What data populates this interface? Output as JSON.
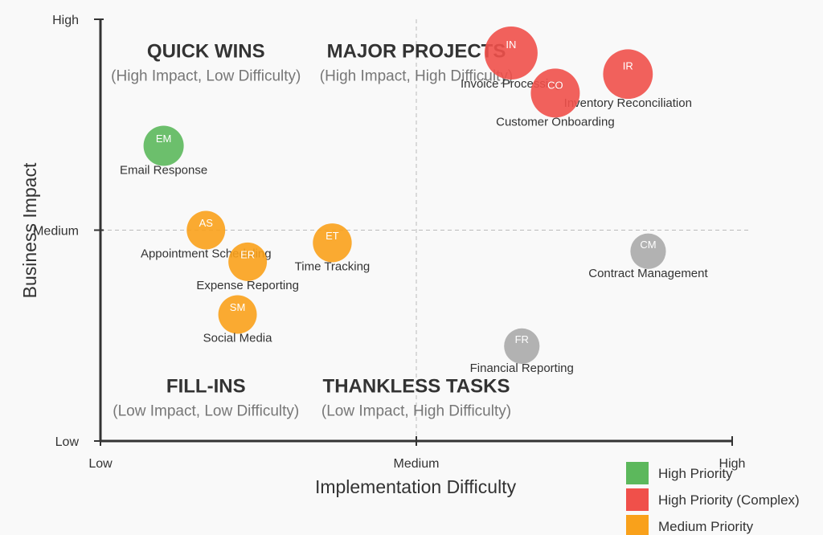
{
  "chart_data": {
    "type": "scatter",
    "title": "",
    "xlabel": "Implementation Difficulty",
    "ylabel": "Business Impact",
    "xlim": [
      0,
      1
    ],
    "ylim": [
      0,
      1
    ],
    "x_ticks": [
      {
        "value": 0,
        "label": "Low"
      },
      {
        "value": 0.5,
        "label": "Medium"
      },
      {
        "value": 1,
        "label": "High"
      }
    ],
    "y_ticks": [
      {
        "value": 0,
        "label": "Low"
      },
      {
        "value": 0.5,
        "label": "Medium"
      },
      {
        "value": 1,
        "label": "High"
      }
    ],
    "grid": "dashed-midlines",
    "quadrants": [
      {
        "title": "QUICK WINS",
        "subtitle": "(High Impact, Low Difficulty)",
        "x": 0.167,
        "y": 0.91
      },
      {
        "title": "MAJOR PROJECTS",
        "subtitle": "(High Impact, High Difficulty)",
        "x": 0.5,
        "y": 0.91
      },
      {
        "title": "FILL-INS",
        "subtitle": "(Low Impact, Low Difficulty)",
        "x": 0.167,
        "y": 0.115
      },
      {
        "title": "THANKLESS TASKS",
        "subtitle": "(Low Impact, High Difficulty)",
        "x": 0.5,
        "y": 0.115
      }
    ],
    "points": [
      {
        "abbr": "IN",
        "label": "Invoice Processing",
        "x": 0.65,
        "y": 0.92,
        "size": 1.0,
        "category": "high-complex"
      },
      {
        "abbr": "IR",
        "label": "Inventory Reconciliation",
        "x": 0.835,
        "y": 0.87,
        "size": 0.9,
        "category": "high-complex"
      },
      {
        "abbr": "CO",
        "label": "Customer Onboarding",
        "x": 0.72,
        "y": 0.825,
        "size": 0.88,
        "category": "high-complex"
      },
      {
        "abbr": "EM",
        "label": "Email Response",
        "x": 0.1,
        "y": 0.7,
        "size": 0.62,
        "category": "high"
      },
      {
        "abbr": "AS",
        "label": "Appointment Scheduling",
        "x": 0.167,
        "y": 0.5,
        "size": 0.57,
        "category": "medium"
      },
      {
        "abbr": "ET",
        "label": "Time Tracking",
        "x": 0.367,
        "y": 0.47,
        "size": 0.58,
        "category": "medium"
      },
      {
        "abbr": "ER",
        "label": "Expense Reporting",
        "x": 0.233,
        "y": 0.425,
        "size": 0.57,
        "category": "medium"
      },
      {
        "abbr": "SM",
        "label": "Social Media",
        "x": 0.217,
        "y": 0.3,
        "size": 0.57,
        "category": "medium"
      },
      {
        "abbr": "CM",
        "label": "Contract Management",
        "x": 0.867,
        "y": 0.45,
        "size": 0.48,
        "category": "low"
      },
      {
        "abbr": "FR",
        "label": "Financial Reporting",
        "x": 0.667,
        "y": 0.225,
        "size": 0.48,
        "category": "low"
      }
    ],
    "legend": {
      "placement": "bottom-right",
      "items": [
        {
          "category": "high",
          "label": "High Priority",
          "color": "#5cb85c"
        },
        {
          "category": "high-complex",
          "label": "High Priority (Complex)",
          "color": "#f0504a"
        },
        {
          "category": "medium",
          "label": "Medium Priority",
          "color": "#f9a11b"
        }
      ]
    },
    "colors": {
      "high": "#5cb85c",
      "high-complex": "#f0504a",
      "medium": "#f9a11b",
      "low": "#aaaaaa"
    }
  }
}
